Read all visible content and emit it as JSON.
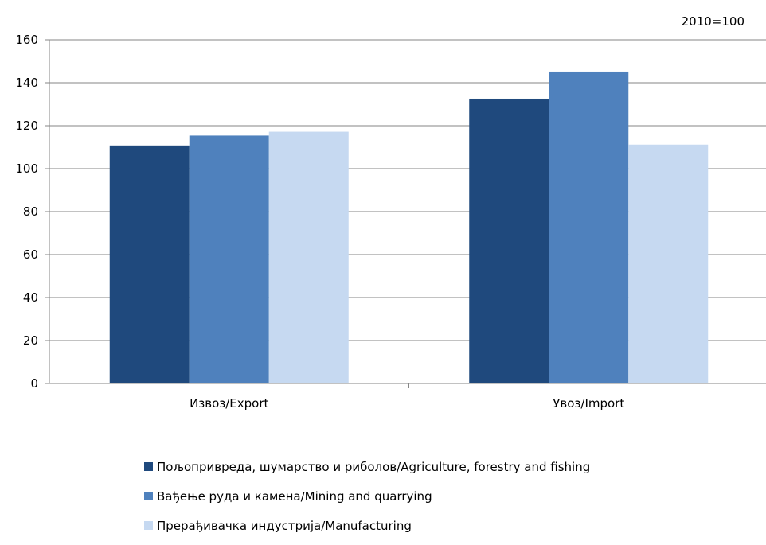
{
  "note": "2010=100",
  "chart_data": {
    "type": "bar",
    "title": "",
    "xlabel": "",
    "ylabel": "",
    "ylim": [
      0,
      160
    ],
    "yticks": [
      0,
      20,
      40,
      60,
      80,
      100,
      120,
      140,
      160
    ],
    "categories": [
      "Извоз/Export",
      "Увоз/Import"
    ],
    "series": [
      {
        "name": "Пољопривреда, шумарство и риболов/Agriculture, forestry and fishing",
        "color": "#1F497D",
        "values": [
          110.8,
          132.6
        ]
      },
      {
        "name": "Вађење руда и камена/Mining and quarrying",
        "color": "#4F81BD",
        "values": [
          115.4,
          145.2
        ]
      },
      {
        "name": "Прерађивачка индустрија/Manufacturing",
        "color": "#C6D9F1",
        "values": [
          117.2,
          111.2
        ]
      }
    ],
    "grid": true,
    "legend": "bottom"
  }
}
